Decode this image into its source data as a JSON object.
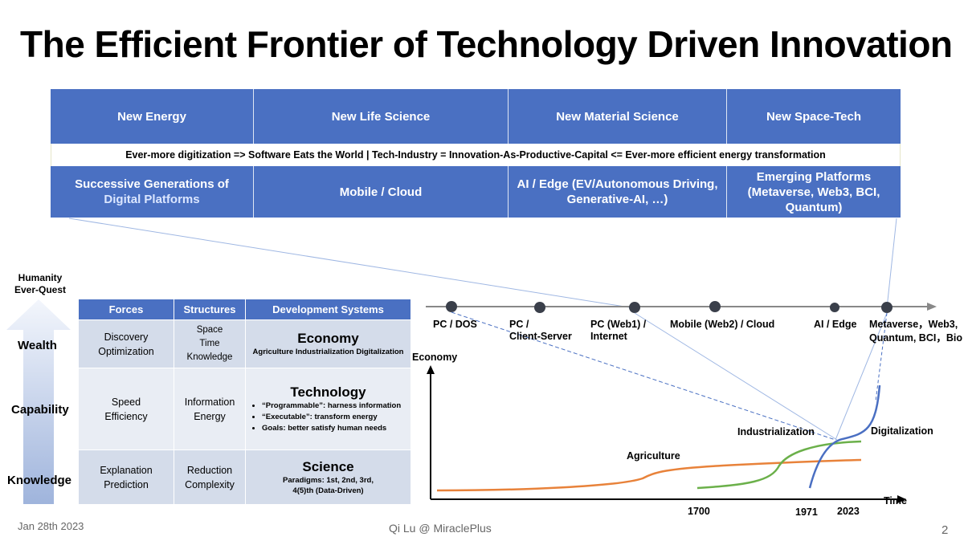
{
  "title": "The Efficient Frontier of Technology Driven Innovation",
  "top_grid": {
    "row1": [
      "New Energy",
      "New Life Science",
      "New Material Science",
      "New Space-Tech"
    ],
    "banner": "Ever-more digitization => Software Eats the World | Tech-Industry = Innovation-As-Productive-Capital <= Ever-more efficient energy transformation",
    "row3": {
      "first_line1": "Successive Generations of",
      "first_line2": "Digital Platforms",
      "c2": "Mobile / Cloud",
      "c3": "AI / Edge (EV/Autonomous Driving, Generative-AI, …)",
      "c4": "Emerging Platforms (Metaverse, Web3, BCI, Quantum)"
    }
  },
  "quest": {
    "heading_line1": "Humanity",
    "heading_line2": "Ever-Quest",
    "levels": [
      "Wealth",
      "Capability",
      "Knowledge"
    ]
  },
  "table": {
    "headers": [
      "Forces",
      "Structures",
      "Development Systems"
    ],
    "rows": [
      {
        "forces": [
          "Discovery",
          "Optimization"
        ],
        "structures": [
          "Space",
          "Time",
          "Knowledge"
        ],
        "system_title": "Economy",
        "system_sub": "Agriculture Industrialization  Digitalization"
      },
      {
        "forces": [
          "Speed",
          "Efficiency"
        ],
        "structures": [
          "Information",
          "Energy"
        ],
        "system_title": "Technology",
        "bullets": [
          "“Programmable”: harness information",
          "“Executable”: transform energy",
          "Goals: better satisfy human needs"
        ]
      },
      {
        "forces": [
          "Explanation",
          "Prediction"
        ],
        "structures": [
          "Reduction",
          "Complexity"
        ],
        "system_title": "Science",
        "system_sub1": "Paradigms: 1st, 2nd, 3rd,",
        "system_sub2": "4(5)th (Data-Driven)"
      }
    ]
  },
  "timeline": {
    "labels": [
      {
        "line1": "PC / DOS",
        "line2": ""
      },
      {
        "line1": "PC /",
        "line2": "Client-Server"
      },
      {
        "line1": "PC (Web1) /",
        "line2": "Internet"
      },
      {
        "line1": "Mobile (Web2) / Cloud",
        "line2": ""
      },
      {
        "line1": "AI / Edge",
        "line2": ""
      },
      {
        "line1": "Metaverse，Web3,",
        "line2": "Quantum, BCI，Bio"
      }
    ]
  },
  "chart": {
    "y_label": "Economy",
    "x_label": "Time",
    "x_ticks": [
      "1700",
      "1971",
      "2023"
    ],
    "series_labels": [
      "Agriculture",
      "Industrialization",
      "Digitalization"
    ],
    "colors": {
      "agriculture": "#e8823a",
      "industrialization": "#6bb04a",
      "digitalization": "#4a6fc2",
      "accent": "#4a70c2"
    }
  },
  "footer": {
    "date": "Jan 28th 2023",
    "author": "Qi Lu @ MiraclePlus",
    "page": "2"
  }
}
